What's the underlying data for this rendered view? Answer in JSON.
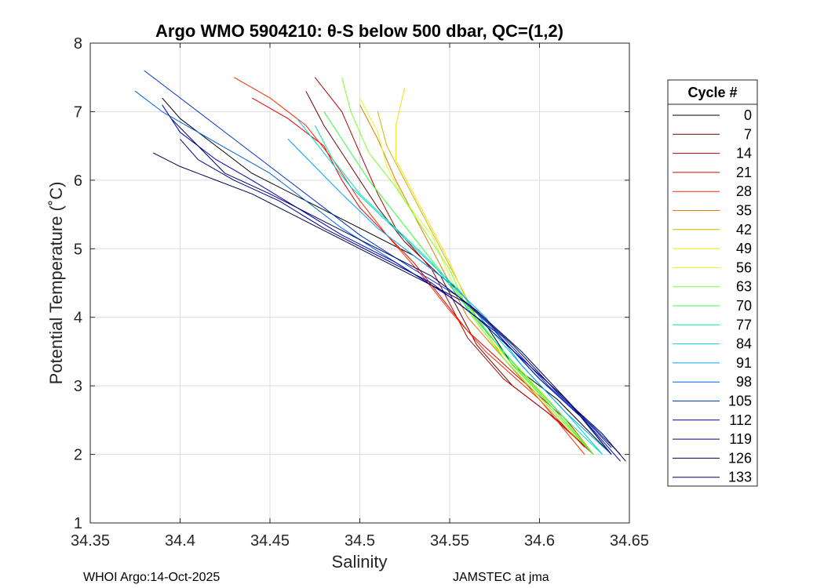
{
  "chart_data": {
    "type": "line",
    "title": "Argo WMO 5904210: θ-S below 500 dbar,  QC=(1,2)",
    "xlabel": "Salinity",
    "ylabel": "Potential Temperature (˚C)",
    "xlim": [
      34.35,
      34.65
    ],
    "ylim": [
      1,
      8
    ],
    "xticks": [
      34.35,
      34.4,
      34.45,
      34.5,
      34.55,
      34.6,
      34.65
    ],
    "xtick_labels": [
      "34.35",
      "34.4",
      "34.45",
      "34.5",
      "34.55",
      "34.6",
      "34.65"
    ],
    "yticks": [
      1,
      2,
      3,
      4,
      5,
      6,
      7,
      8
    ],
    "ytick_labels": [
      "1",
      "2",
      "3",
      "4",
      "5",
      "6",
      "7",
      "8"
    ],
    "grid": true,
    "legend": {
      "title": "Cycle #",
      "placement": "right-outside",
      "entries": [
        {
          "label": "0",
          "color": "#000000"
        },
        {
          "label": "7",
          "color": "#6a0000"
        },
        {
          "label": "14",
          "color": "#b40000"
        },
        {
          "label": "21",
          "color": "#e00000"
        },
        {
          "label": "28",
          "color": "#ff2a00"
        },
        {
          "label": "35",
          "color": "#e07a00"
        },
        {
          "label": "42",
          "color": "#d2b400"
        },
        {
          "label": "49",
          "color": "#f0e600"
        },
        {
          "label": "56",
          "color": "#d4ff2a"
        },
        {
          "label": "63",
          "color": "#7cff2a"
        },
        {
          "label": "70",
          "color": "#2aff3c"
        },
        {
          "label": "77",
          "color": "#00e6a0"
        },
        {
          "label": "84",
          "color": "#00d2e6"
        },
        {
          "label": "91",
          "color": "#00a0ff"
        },
        {
          "label": "98",
          "color": "#0064dc"
        },
        {
          "label": "105",
          "color": "#0032c8"
        },
        {
          "label": "112",
          "color": "#0000b4"
        },
        {
          "label": "119",
          "color": "#00008c"
        },
        {
          "label": "126",
          "color": "#000064"
        },
        {
          "label": "133",
          "color": "#00004a"
        }
      ]
    },
    "series": [
      {
        "name": "0",
        "color": "#000000",
        "points": [
          [
            34.39,
            7.2
          ],
          [
            34.4,
            6.9
          ],
          [
            34.42,
            6.5
          ],
          [
            34.44,
            6.1
          ],
          [
            34.47,
            5.7
          ],
          [
            34.5,
            5.3
          ],
          [
            34.53,
            4.9
          ],
          [
            34.555,
            4.4
          ],
          [
            34.57,
            3.9
          ],
          [
            34.585,
            3.3
          ],
          [
            34.61,
            2.8
          ],
          [
            34.64,
            2.0
          ]
        ]
      },
      {
        "name": "7",
        "color": "#6a0000",
        "points": [
          [
            34.47,
            7.3
          ],
          [
            34.48,
            6.8
          ],
          [
            34.495,
            6.2
          ],
          [
            34.51,
            5.6
          ],
          [
            34.525,
            5.1
          ],
          [
            34.545,
            4.6
          ],
          [
            34.555,
            4.1
          ],
          [
            34.565,
            3.6
          ],
          [
            34.585,
            3.0
          ],
          [
            34.61,
            2.5
          ],
          [
            34.63,
            2.0
          ]
        ]
      },
      {
        "name": "14",
        "color": "#b40000",
        "points": [
          [
            34.475,
            7.5
          ],
          [
            34.49,
            7.0
          ],
          [
            34.5,
            6.4
          ],
          [
            34.51,
            5.8
          ],
          [
            34.52,
            5.3
          ],
          [
            34.54,
            4.7
          ],
          [
            34.55,
            4.2
          ],
          [
            34.56,
            3.7
          ],
          [
            34.58,
            3.1
          ],
          [
            34.605,
            2.6
          ],
          [
            34.63,
            2.0
          ]
        ]
      },
      {
        "name": "21",
        "color": "#e00000",
        "points": [
          [
            34.44,
            7.2
          ],
          [
            34.46,
            6.9
          ],
          [
            34.48,
            6.5
          ],
          [
            34.49,
            6.0
          ],
          [
            34.5,
            5.6
          ],
          [
            34.515,
            5.2
          ],
          [
            34.53,
            4.8
          ],
          [
            34.545,
            4.3
          ],
          [
            34.56,
            3.8
          ],
          [
            34.585,
            3.2
          ],
          [
            34.615,
            2.5
          ],
          [
            34.63,
            2.0
          ]
        ]
      },
      {
        "name": "28",
        "color": "#ff2a00",
        "points": [
          [
            34.43,
            7.5
          ],
          [
            34.45,
            7.2
          ],
          [
            34.47,
            6.8
          ],
          [
            34.485,
            6.3
          ],
          [
            34.5,
            5.7
          ],
          [
            34.515,
            5.2
          ],
          [
            34.535,
            4.6
          ],
          [
            34.55,
            4.1
          ],
          [
            34.57,
            3.5
          ],
          [
            34.6,
            2.8
          ],
          [
            34.625,
            2.0
          ]
        ]
      },
      {
        "name": "35",
        "color": "#e07a00",
        "points": [
          [
            34.5,
            7.1
          ],
          [
            34.51,
            6.6
          ],
          [
            34.52,
            6.0
          ],
          [
            34.53,
            5.5
          ],
          [
            34.54,
            5.0
          ],
          [
            34.55,
            4.5
          ],
          [
            34.56,
            4.0
          ],
          [
            34.58,
            3.4
          ],
          [
            34.6,
            2.8
          ],
          [
            34.625,
            2.1
          ]
        ]
      },
      {
        "name": "42",
        "color": "#d2b400",
        "points": [
          [
            34.51,
            7.0
          ],
          [
            34.515,
            6.5
          ],
          [
            34.525,
            6.0
          ],
          [
            34.535,
            5.5
          ],
          [
            34.545,
            5.0
          ],
          [
            34.555,
            4.5
          ],
          [
            34.565,
            4.0
          ],
          [
            34.58,
            3.4
          ],
          [
            34.605,
            2.7
          ],
          [
            34.63,
            2.0
          ]
        ]
      },
      {
        "name": "49",
        "color": "#f0e600",
        "points": [
          [
            34.525,
            7.35
          ],
          [
            34.52,
            6.8
          ],
          [
            34.52,
            6.3
          ],
          [
            34.53,
            5.8
          ],
          [
            34.54,
            5.3
          ],
          [
            34.55,
            4.8
          ],
          [
            34.56,
            4.2
          ],
          [
            34.575,
            3.6
          ],
          [
            34.6,
            2.9
          ],
          [
            34.63,
            2.0
          ]
        ]
      },
      {
        "name": "56",
        "color": "#d4ff2a",
        "points": [
          [
            34.5,
            7.2
          ],
          [
            34.51,
            6.7
          ],
          [
            34.515,
            6.2
          ],
          [
            34.525,
            5.7
          ],
          [
            34.54,
            5.2
          ],
          [
            34.55,
            4.6
          ],
          [
            34.56,
            4.1
          ],
          [
            34.58,
            3.5
          ],
          [
            34.605,
            2.8
          ],
          [
            34.63,
            2.0
          ]
        ]
      },
      {
        "name": "63",
        "color": "#7cff2a",
        "points": [
          [
            34.49,
            7.5
          ],
          [
            34.495,
            7.0
          ],
          [
            34.505,
            6.4
          ],
          [
            34.52,
            5.9
          ],
          [
            34.535,
            5.3
          ],
          [
            34.55,
            4.7
          ],
          [
            34.56,
            4.1
          ],
          [
            34.58,
            3.4
          ],
          [
            34.605,
            2.7
          ],
          [
            34.63,
            2.0
          ]
        ]
      },
      {
        "name": "70",
        "color": "#2aff3c",
        "points": [
          [
            34.48,
            7.0
          ],
          [
            34.49,
            6.6
          ],
          [
            34.505,
            6.0
          ],
          [
            34.52,
            5.5
          ],
          [
            34.535,
            5.0
          ],
          [
            34.55,
            4.5
          ],
          [
            34.565,
            4.0
          ],
          [
            34.585,
            3.3
          ],
          [
            34.61,
            2.6
          ],
          [
            34.63,
            2.0
          ]
        ]
      },
      {
        "name": "77",
        "color": "#00e6a0",
        "points": [
          [
            34.475,
            6.8
          ],
          [
            34.485,
            6.3
          ],
          [
            34.5,
            5.8
          ],
          [
            34.52,
            5.3
          ],
          [
            34.54,
            4.8
          ],
          [
            34.555,
            4.3
          ],
          [
            34.57,
            3.8
          ],
          [
            34.59,
            3.2
          ],
          [
            34.615,
            2.5
          ],
          [
            34.635,
            2.0
          ]
        ]
      },
      {
        "name": "84",
        "color": "#00d2e6",
        "points": [
          [
            34.465,
            6.9
          ],
          [
            34.48,
            6.4
          ],
          [
            34.495,
            5.9
          ],
          [
            34.515,
            5.4
          ],
          [
            34.535,
            4.9
          ],
          [
            34.555,
            4.4
          ],
          [
            34.57,
            3.9
          ],
          [
            34.59,
            3.3
          ],
          [
            34.615,
            2.6
          ],
          [
            34.635,
            2.0
          ]
        ]
      },
      {
        "name": "91",
        "color": "#00a0ff",
        "points": [
          [
            34.46,
            6.6
          ],
          [
            34.475,
            6.2
          ],
          [
            34.49,
            5.8
          ],
          [
            34.51,
            5.3
          ],
          [
            34.53,
            4.9
          ],
          [
            34.55,
            4.5
          ],
          [
            34.57,
            4.0
          ],
          [
            34.59,
            3.3
          ],
          [
            34.615,
            2.6
          ],
          [
            34.64,
            2.0
          ]
        ]
      },
      {
        "name": "98",
        "color": "#0064dc",
        "points": [
          [
            34.375,
            7.3
          ],
          [
            34.39,
            7.0
          ],
          [
            34.41,
            6.7
          ],
          [
            34.43,
            6.4
          ],
          [
            34.45,
            6.1
          ],
          [
            34.47,
            5.7
          ],
          [
            34.49,
            5.3
          ],
          [
            34.52,
            4.8
          ],
          [
            34.55,
            4.3
          ],
          [
            34.575,
            3.8
          ],
          [
            34.6,
            3.1
          ],
          [
            34.625,
            2.5
          ],
          [
            34.64,
            2.0
          ]
        ]
      },
      {
        "name": "105",
        "color": "#0032c8",
        "points": [
          [
            34.38,
            7.6
          ],
          [
            34.4,
            7.2
          ],
          [
            34.42,
            6.8
          ],
          [
            34.44,
            6.4
          ],
          [
            34.46,
            6.0
          ],
          [
            34.48,
            5.6
          ],
          [
            34.5,
            5.2
          ],
          [
            34.53,
            4.7
          ],
          [
            34.555,
            4.3
          ],
          [
            34.58,
            3.7
          ],
          [
            34.605,
            3.0
          ],
          [
            34.63,
            2.4
          ],
          [
            34.645,
            2.0
          ]
        ]
      },
      {
        "name": "112",
        "color": "#0000b4",
        "points": [
          [
            34.39,
            7.1
          ],
          [
            34.4,
            6.7
          ],
          [
            34.42,
            6.3
          ],
          [
            34.44,
            6.0
          ],
          [
            34.465,
            5.6
          ],
          [
            34.49,
            5.2
          ],
          [
            34.52,
            4.8
          ],
          [
            34.55,
            4.3
          ],
          [
            34.575,
            3.8
          ],
          [
            34.6,
            3.1
          ],
          [
            34.625,
            2.5
          ],
          [
            34.645,
            1.9
          ]
        ]
      },
      {
        "name": "119",
        "color": "#00008c",
        "points": [
          [
            34.4,
            6.6
          ],
          [
            34.41,
            6.3
          ],
          [
            34.43,
            6.0
          ],
          [
            34.455,
            5.7
          ],
          [
            34.48,
            5.3
          ],
          [
            34.51,
            4.9
          ],
          [
            34.54,
            4.5
          ],
          [
            34.565,
            4.0
          ],
          [
            34.59,
            3.4
          ],
          [
            34.615,
            2.8
          ],
          [
            34.64,
            2.1
          ]
        ]
      },
      {
        "name": "126",
        "color": "#000064",
        "points": [
          [
            34.395,
            6.9
          ],
          [
            34.41,
            6.5
          ],
          [
            34.425,
            6.1
          ],
          [
            34.45,
            5.8
          ],
          [
            34.48,
            5.4
          ],
          [
            34.51,
            5.0
          ],
          [
            34.54,
            4.6
          ],
          [
            34.565,
            4.1
          ],
          [
            34.59,
            3.5
          ],
          [
            34.615,
            2.8
          ],
          [
            34.64,
            2.0
          ]
        ]
      },
      {
        "name": "133",
        "color": "#00004a",
        "points": [
          [
            34.385,
            6.4
          ],
          [
            34.4,
            6.2
          ],
          [
            34.42,
            6.0
          ],
          [
            34.44,
            5.8
          ],
          [
            34.47,
            5.4
          ],
          [
            34.5,
            5.0
          ],
          [
            34.53,
            4.6
          ],
          [
            34.56,
            4.2
          ],
          [
            34.585,
            3.6
          ],
          [
            34.61,
            2.9
          ],
          [
            34.635,
            2.3
          ],
          [
            34.648,
            1.9
          ]
        ]
      }
    ]
  },
  "footer": {
    "left": "WHOI Argo:14-Oct-2025",
    "right": "JAMSTEC at jma"
  }
}
